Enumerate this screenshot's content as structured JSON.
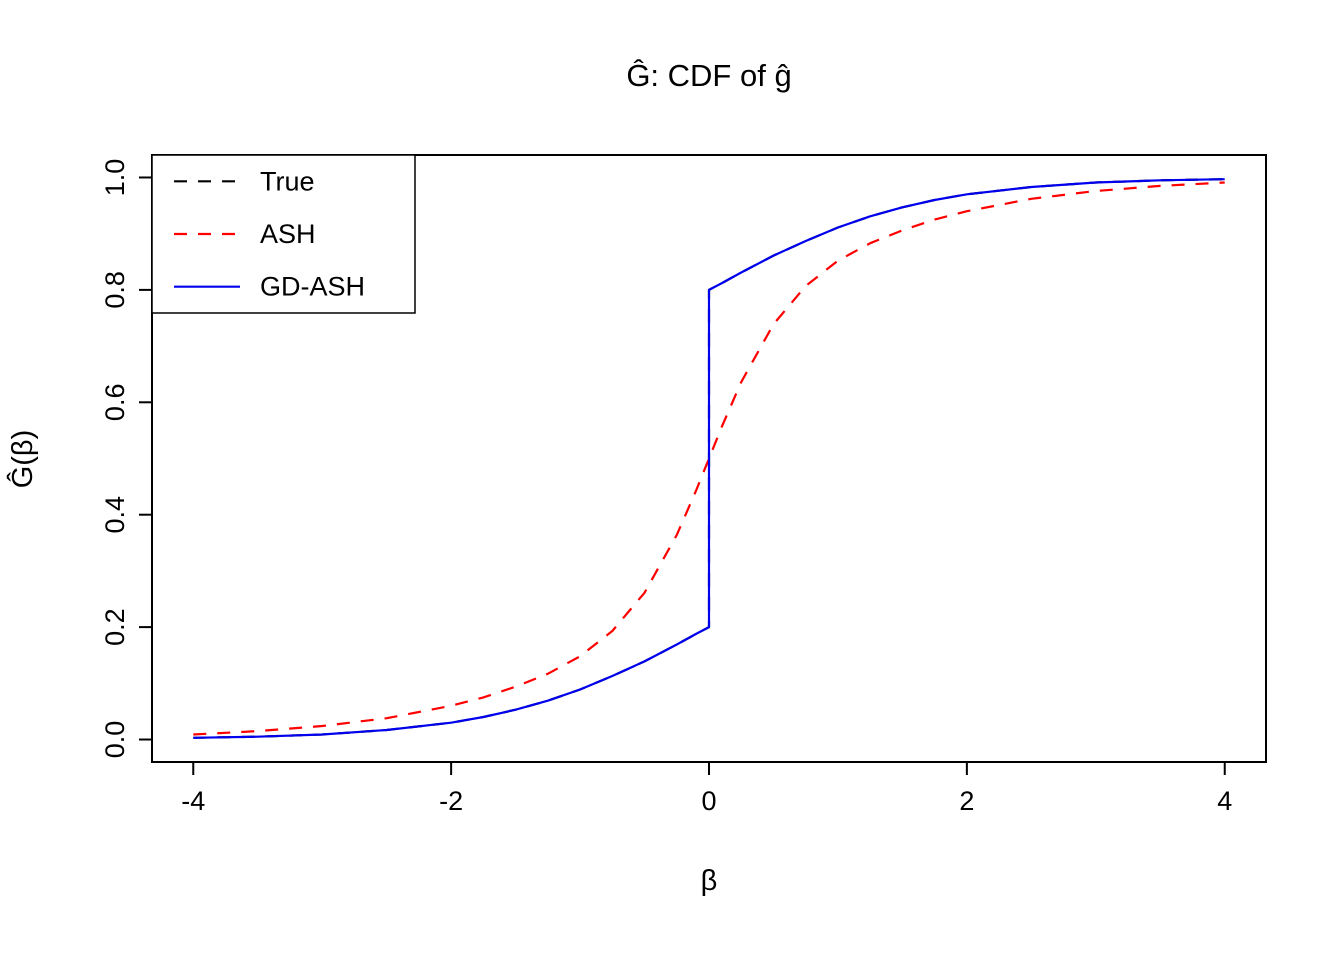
{
  "chart_data": {
    "type": "line",
    "title": "Ĝ: CDF of ĝ",
    "xlabel": "β",
    "ylabel": "Ĝ(β)",
    "xlim": [
      -4,
      4
    ],
    "ylim": [
      0,
      1
    ],
    "grid": false,
    "legend_position": "top-left",
    "x_ticks": [
      {
        "value": -4,
        "label": "-4"
      },
      {
        "value": -2,
        "label": "-2"
      },
      {
        "value": 0,
        "label": "0"
      },
      {
        "value": 2,
        "label": "2"
      },
      {
        "value": 4,
        "label": "4"
      }
    ],
    "y_ticks": [
      {
        "value": 0.0,
        "label": "0.0"
      },
      {
        "value": 0.2,
        "label": "0.2"
      },
      {
        "value": 0.4,
        "label": "0.4"
      },
      {
        "value": 0.6,
        "label": "0.6"
      },
      {
        "value": 0.8,
        "label": "0.8"
      },
      {
        "value": 1.0,
        "label": "1.0"
      }
    ],
    "series": [
      {
        "name": "True",
        "color": "#000000",
        "style": "dashed",
        "points": [
          [
            -4,
            0.003
          ],
          [
            -3.5,
            0.005
          ],
          [
            -3,
            0.009
          ],
          [
            -2.5,
            0.017
          ],
          [
            -2,
            0.03
          ],
          [
            -1.75,
            0.04
          ],
          [
            -1.5,
            0.053
          ],
          [
            -1.25,
            0.069
          ],
          [
            -1,
            0.089
          ],
          [
            -0.75,
            0.113
          ],
          [
            -0.5,
            0.139
          ],
          [
            -0.25,
            0.169
          ],
          [
            -0.1,
            0.188
          ],
          [
            0,
            0.2
          ],
          [
            0,
            0.8
          ],
          [
            0.1,
            0.812
          ],
          [
            0.25,
            0.831
          ],
          [
            0.5,
            0.861
          ],
          [
            0.75,
            0.887
          ],
          [
            1,
            0.911
          ],
          [
            1.25,
            0.931
          ],
          [
            1.5,
            0.947
          ],
          [
            1.75,
            0.96
          ],
          [
            2,
            0.97
          ],
          [
            2.5,
            0.983
          ],
          [
            3,
            0.991
          ],
          [
            3.5,
            0.995
          ],
          [
            4,
            0.997
          ]
        ]
      },
      {
        "name": "ASH",
        "color": "#ff0000",
        "style": "dashed",
        "points": [
          [
            -4,
            0.009
          ],
          [
            -3.5,
            0.015
          ],
          [
            -3,
            0.024
          ],
          [
            -2.5,
            0.038
          ],
          [
            -2,
            0.06
          ],
          [
            -1.75,
            0.075
          ],
          [
            -1.5,
            0.094
          ],
          [
            -1.25,
            0.117
          ],
          [
            -1,
            0.148
          ],
          [
            -0.75,
            0.193
          ],
          [
            -0.5,
            0.261
          ],
          [
            -0.25,
            0.364
          ],
          [
            -0.1,
            0.443
          ],
          [
            0,
            0.5
          ],
          [
            0.1,
            0.557
          ],
          [
            0.25,
            0.636
          ],
          [
            0.5,
            0.739
          ],
          [
            0.75,
            0.807
          ],
          [
            1,
            0.852
          ],
          [
            1.25,
            0.883
          ],
          [
            1.5,
            0.906
          ],
          [
            1.75,
            0.925
          ],
          [
            2,
            0.94
          ],
          [
            2.5,
            0.962
          ],
          [
            3,
            0.976
          ],
          [
            3.5,
            0.985
          ],
          [
            4,
            0.991
          ]
        ]
      },
      {
        "name": "GD-ASH",
        "color": "#0000ee",
        "style": "solid",
        "points": [
          [
            -4,
            0.003
          ],
          [
            -3.5,
            0.005
          ],
          [
            -3,
            0.009
          ],
          [
            -2.5,
            0.017
          ],
          [
            -2,
            0.03
          ],
          [
            -1.75,
            0.04
          ],
          [
            -1.5,
            0.053
          ],
          [
            -1.25,
            0.069
          ],
          [
            -1,
            0.089
          ],
          [
            -0.75,
            0.113
          ],
          [
            -0.5,
            0.139
          ],
          [
            -0.25,
            0.169
          ],
          [
            -0.1,
            0.188
          ],
          [
            0,
            0.2
          ],
          [
            0,
            0.8
          ],
          [
            0.1,
            0.812
          ],
          [
            0.25,
            0.831
          ],
          [
            0.5,
            0.861
          ],
          [
            0.75,
            0.887
          ],
          [
            1,
            0.911
          ],
          [
            1.25,
            0.931
          ],
          [
            1.5,
            0.947
          ],
          [
            1.75,
            0.96
          ],
          [
            2,
            0.97
          ],
          [
            2.5,
            0.983
          ],
          [
            3,
            0.991
          ],
          [
            3.5,
            0.995
          ],
          [
            4,
            0.997
          ]
        ]
      }
    ]
  }
}
